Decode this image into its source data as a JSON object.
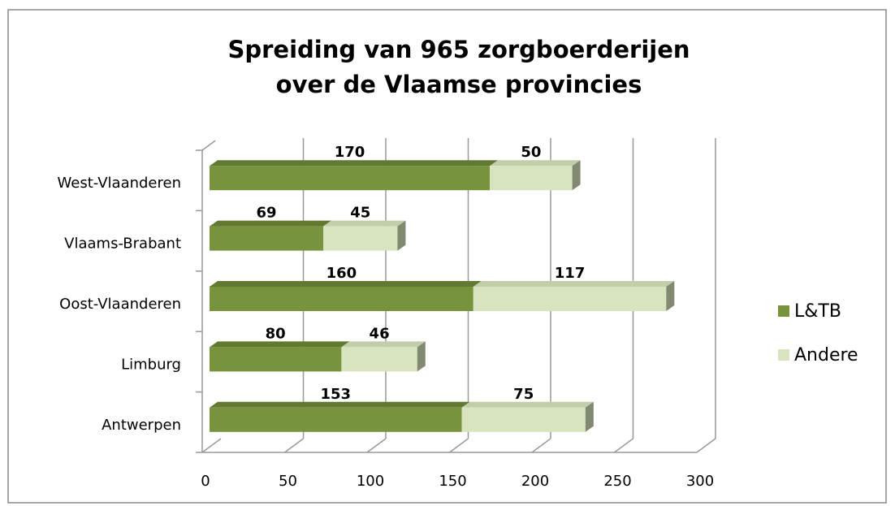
{
  "chart_data": {
    "type": "bar",
    "orientation": "horizontal",
    "stacked": true,
    "three_d": true,
    "title": "Spreiding van 965 zorgboerderijen over de Vlaamse provincies",
    "categories": [
      "Antwerpen",
      "Limburg",
      "Oost-Vlaanderen",
      "Vlaams-Brabant",
      "West-Vlaanderen"
    ],
    "series": [
      {
        "name": "L&TB",
        "color": "#77933c",
        "values": [
          153,
          80,
          160,
          69,
          170
        ]
      },
      {
        "name": "Andere",
        "color": "#d7e4bd",
        "values": [
          75,
          46,
          117,
          45,
          50
        ]
      }
    ],
    "xlim": [
      0,
      300
    ],
    "xticks": [
      0,
      50,
      100,
      150,
      200,
      250,
      300
    ],
    "grid": true,
    "legend": "right"
  }
}
